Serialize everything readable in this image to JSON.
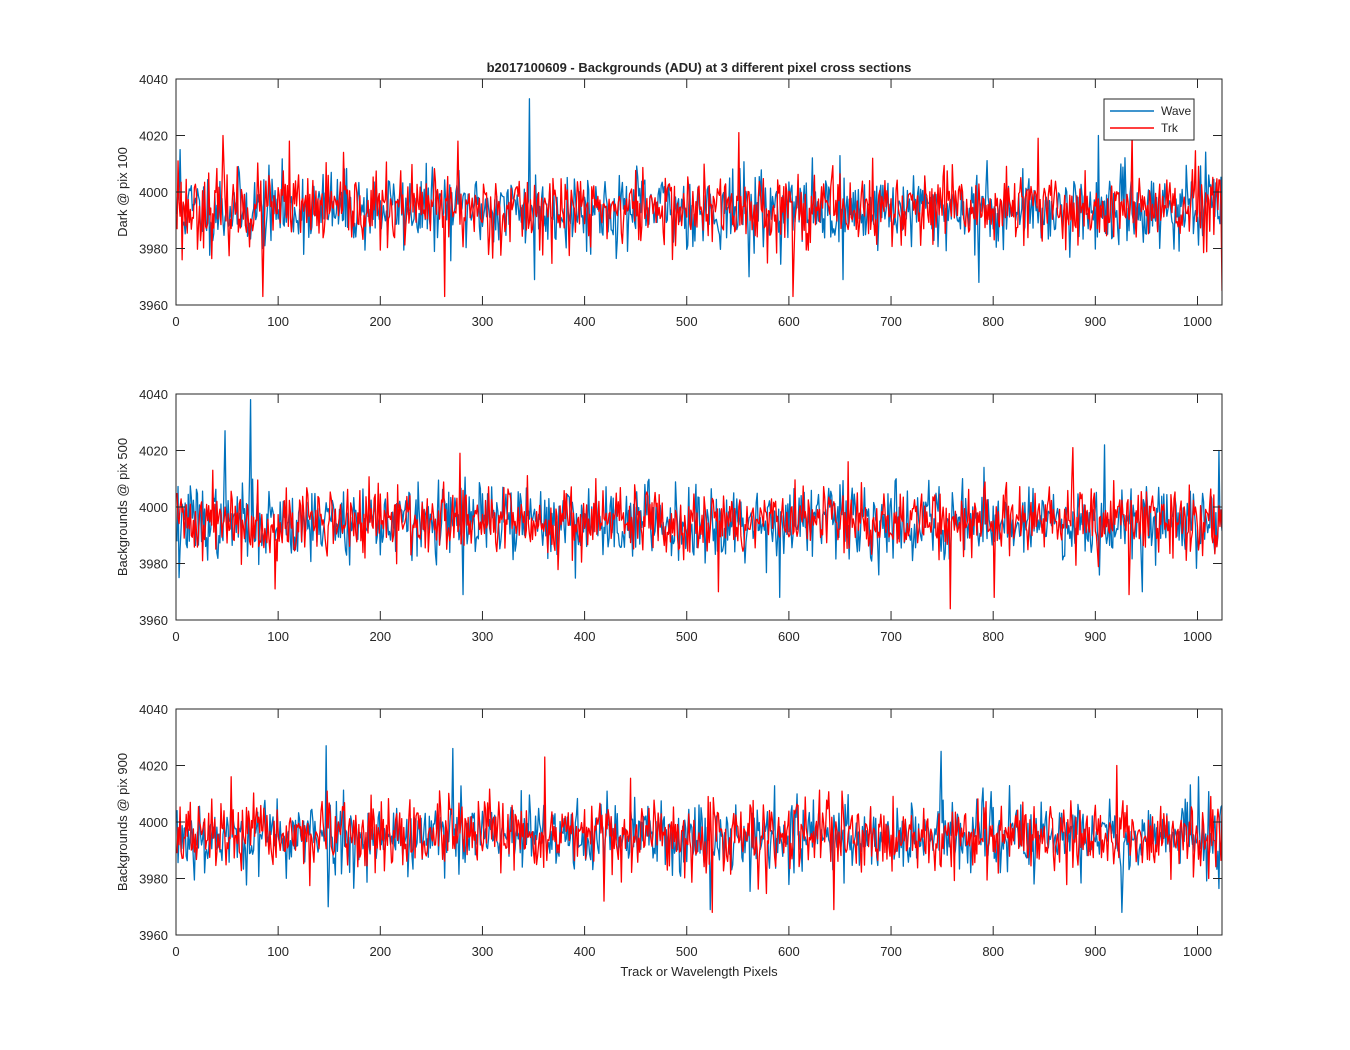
{
  "figure": {
    "title": "b2017100609 - Backgrounds (ADU) at 3 different pixel cross sections",
    "xlabel": "Track or Wavelength Pixels"
  },
  "colors": {
    "wave": "#0072BD",
    "trk": "#FF0000",
    "axis": "#262626",
    "background": "#FFFFFF"
  },
  "legend": {
    "placement": "top-right",
    "entries": [
      "Wave",
      "Trk"
    ]
  },
  "chart_data": [
    {
      "type": "line",
      "ylabel": "Dark @ pix 100",
      "xlim": [
        0,
        1024
      ],
      "ylim": [
        3960,
        4040
      ],
      "xticks": [
        0,
        100,
        200,
        300,
        400,
        500,
        600,
        700,
        800,
        900,
        1000
      ],
      "yticks": [
        3960,
        3980,
        4000,
        4020,
        4040
      ],
      "grid": false,
      "show_legend": true,
      "noise": {
        "n": 1024,
        "mean": 3994,
        "wave_sd": 6.5,
        "trk_sd": 6.5
      },
      "series": [
        {
          "name": "Wave",
          "color": "#0072BD",
          "seed": 11,
          "spikes": [
            [
              3,
              4015
            ],
            [
              84,
              3980
            ],
            [
              345,
              4033
            ],
            [
              350,
              3969
            ],
            [
              560,
              3970
            ],
            [
              652,
              3969
            ],
            [
              785,
              3968
            ],
            [
              902,
              4020
            ],
            [
              1010,
              4006
            ]
          ]
        },
        {
          "name": "Trk",
          "color": "#FF0000",
          "seed": 23,
          "spikes": [
            [
              1,
              4011
            ],
            [
              5,
              3976
            ],
            [
              45,
              4020
            ],
            [
              84,
              3963
            ],
            [
              110,
              4018
            ],
            [
              262,
              3963
            ],
            [
              275,
              4018
            ],
            [
              550,
              4021
            ],
            [
              603,
              3963
            ],
            [
              843,
              4019
            ],
            [
              935,
              4021
            ],
            [
              1023,
              3965
            ]
          ]
        }
      ]
    },
    {
      "type": "line",
      "ylabel": "Backgrounds @ pix 500",
      "xlim": [
        0,
        1024
      ],
      "ylim": [
        3960,
        4040
      ],
      "xticks": [
        0,
        100,
        200,
        300,
        400,
        500,
        600,
        700,
        800,
        900,
        1000
      ],
      "yticks": [
        3960,
        3980,
        4000,
        4020,
        4040
      ],
      "grid": false,
      "show_legend": false,
      "noise": {
        "n": 1024,
        "mean": 3995,
        "wave_sd": 6.5,
        "trk_sd": 6.0
      },
      "series": [
        {
          "name": "Wave",
          "color": "#0072BD",
          "seed": 37,
          "spikes": [
            [
              2,
              3975
            ],
            [
              47,
              4027
            ],
            [
              72,
              4038
            ],
            [
              280,
              3969
            ],
            [
              590,
              3968
            ],
            [
              790,
              4014
            ],
            [
              908,
              4022
            ],
            [
              945,
              3970
            ],
            [
              1020,
              4020
            ]
          ]
        },
        {
          "name": "Trk",
          "color": "#FF0000",
          "seed": 41,
          "spikes": [
            [
              35,
              4013
            ],
            [
              96,
              3971
            ],
            [
              277,
              4019
            ],
            [
              530,
              3970
            ],
            [
              657,
              4016
            ],
            [
              757,
              3964
            ],
            [
              800,
              3968
            ],
            [
              877,
              4021
            ],
            [
              932,
              3969
            ]
          ]
        }
      ]
    },
    {
      "type": "line",
      "ylabel": "Backgrounds @ pix 900",
      "xlim": [
        0,
        1024
      ],
      "ylim": [
        3960,
        4040
      ],
      "xticks": [
        0,
        100,
        200,
        300,
        400,
        500,
        600,
        700,
        800,
        900,
        1000
      ],
      "yticks": [
        3960,
        3980,
        4000,
        4020,
        4040
      ],
      "grid": false,
      "show_legend": false,
      "noise": {
        "n": 1024,
        "mean": 3995,
        "wave_sd": 6.5,
        "trk_sd": 6.0
      },
      "series": [
        {
          "name": "Wave",
          "color": "#0072BD",
          "seed": 53,
          "spikes": [
            [
              146,
              4027
            ],
            [
              148,
              3970
            ],
            [
              270,
              4026
            ],
            [
              522,
              3969
            ],
            [
              748,
              4025
            ],
            [
              925,
              3968
            ],
            [
              1000,
              4016
            ]
          ]
        },
        {
          "name": "Trk",
          "color": "#FF0000",
          "seed": 67,
          "spikes": [
            [
              53,
              4016
            ],
            [
              360,
              4023
            ],
            [
              418,
              3972
            ],
            [
              524,
              3968
            ],
            [
              643,
              3969
            ],
            [
              920,
              4020
            ],
            [
              1010,
              3980
            ]
          ]
        }
      ]
    }
  ]
}
